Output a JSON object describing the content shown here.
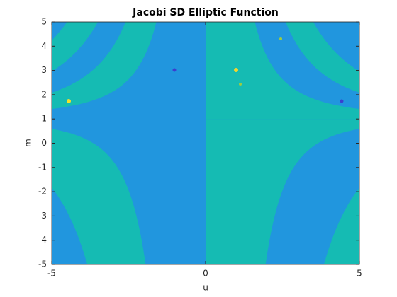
{
  "chart_data": {
    "type": "contour",
    "title": "Jacobi SD Elliptic Function",
    "x_label": "u",
    "y_label": "m",
    "xlim": [
      -5,
      5
    ],
    "ylim": [
      -5,
      5
    ],
    "xticks": [
      -5,
      0,
      5
    ],
    "yticks": [
      -5,
      -4,
      -3,
      -2,
      -1,
      0,
      1,
      2,
      3,
      4,
      5
    ],
    "colors": [
      "#2196de",
      "#15bbb3"
    ]
  }
}
